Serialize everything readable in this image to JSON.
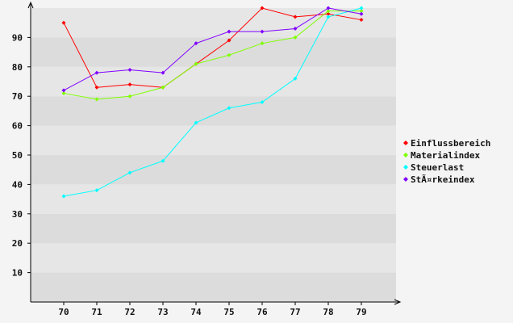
{
  "chart_data": {
    "type": "line",
    "title": "",
    "xlabel": "",
    "ylabel": "",
    "x": [
      70,
      71,
      72,
      73,
      74,
      75,
      76,
      77,
      78,
      79
    ],
    "x_tick_labels": [
      "70",
      "71",
      "72",
      "73",
      "74",
      "75",
      "76",
      "77",
      "78",
      "79"
    ],
    "ylim": [
      0,
      100
    ],
    "y_ticks": [
      10,
      20,
      30,
      40,
      50,
      60,
      70,
      80,
      90
    ],
    "y_tick_labels": [
      "10",
      "20",
      "30",
      "40",
      "50",
      "60",
      "70",
      "80",
      "90"
    ],
    "grid": "horizontal alternating bands",
    "legend_position": "right",
    "series": [
      {
        "name": "Einflussbereich",
        "color": "#ff0000",
        "values": [
          95,
          73,
          74,
          73,
          81,
          89,
          100,
          97,
          98,
          96
        ]
      },
      {
        "name": "Materialindex",
        "color": "#7fff00",
        "values": [
          71,
          69,
          70,
          73,
          81,
          84,
          88,
          90,
          99,
          99
        ]
      },
      {
        "name": "Steuerlast",
        "color": "#00ffff",
        "values": [
          36,
          38,
          44,
          48,
          61,
          66,
          68,
          76,
          97,
          100
        ]
      },
      {
        "name": "StÃ¤rkeindex",
        "color": "#8000ff",
        "values": [
          72,
          78,
          79,
          78,
          88,
          92,
          92,
          93,
          100,
          98
        ]
      }
    ]
  },
  "colors": {
    "background": "#f4f4f4",
    "band_dark": "#dcdcdc",
    "band_light": "#e6e6e6",
    "axis": "#000000"
  }
}
